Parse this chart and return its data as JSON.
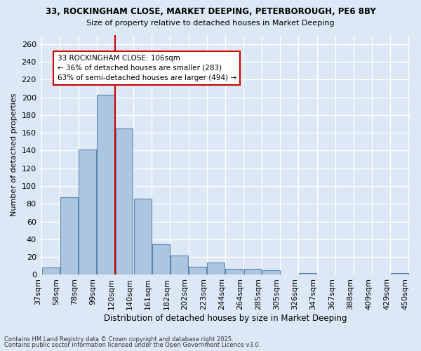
{
  "title1": "33, ROCKINGHAM CLOSE, MARKET DEEPING, PETERBOROUGH, PE6 8BY",
  "title2": "Size of property relative to detached houses in Market Deeping",
  "xlabel": "Distribution of detached houses by size in Market Deeping",
  "ylabel": "Number of detached properties",
  "bin_labels": [
    "37sqm",
    "58sqm",
    "78sqm",
    "99sqm",
    "120sqm",
    "140sqm",
    "161sqm",
    "182sqm",
    "202sqm",
    "223sqm",
    "244sqm",
    "264sqm",
    "285sqm",
    "305sqm",
    "326sqm",
    "347sqm",
    "367sqm",
    "388sqm",
    "409sqm",
    "429sqm",
    "450sqm"
  ],
  "values": [
    8,
    87,
    141,
    203,
    165,
    86,
    34,
    22,
    9,
    14,
    7,
    7,
    5,
    0,
    2,
    0,
    0,
    0,
    0,
    2
  ],
  "bar_color": "#adc6e0",
  "bar_edge_color": "#5585b5",
  "red_line_x": 3.5,
  "annotation_text": "33 ROCKINGHAM CLOSE: 106sqm\n← 36% of detached houses are smaller (283)\n63% of semi-detached houses are larger (494) →",
  "annotation_box_color": "#ffffff",
  "annotation_box_edge": "#cc0000",
  "vline_color": "#cc0000",
  "ylim": [
    0,
    270
  ],
  "yticks": [
    0,
    20,
    40,
    60,
    80,
    100,
    120,
    140,
    160,
    180,
    200,
    220,
    240,
    260
  ],
  "footer1": "Contains HM Land Registry data © Crown copyright and database right 2025.",
  "footer2": "Contains public sector information licensed under the Open Government Licence v3.0.",
  "bg_color": "#dce8f5",
  "grid_color": "#ffffff"
}
